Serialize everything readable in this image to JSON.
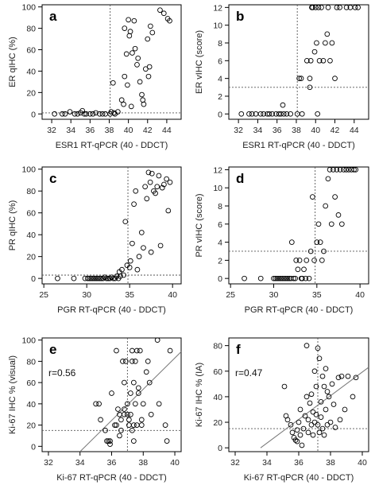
{
  "chart_data": [
    {
      "type": "scatter",
      "panel_label": "a",
      "xlabel": "ESR1 RT-qPCR (40 - DDCT)",
      "ylabel": "ER qIHC (%)",
      "xlim": [
        31,
        45.5
      ],
      "ylim": [
        -5,
        102
      ],
      "xticks": [
        32,
        34,
        36,
        38,
        40,
        42,
        44
      ],
      "yticks": [
        0,
        20,
        40,
        60,
        80,
        100
      ],
      "vline": 38.1,
      "hline": 1,
      "points": [
        [
          32.3,
          0
        ],
        [
          33.1,
          0
        ],
        [
          33.4,
          0
        ],
        [
          33.9,
          2
        ],
        [
          34.4,
          0
        ],
        [
          34.7,
          0
        ],
        [
          35.0,
          1
        ],
        [
          35.2,
          3
        ],
        [
          35.4,
          0
        ],
        [
          35.6,
          0
        ],
        [
          36.0,
          0
        ],
        [
          36.3,
          0
        ],
        [
          36.6,
          1
        ],
        [
          37.0,
          0
        ],
        [
          37.3,
          0
        ],
        [
          37.6,
          0
        ],
        [
          38.1,
          0
        ],
        [
          38.2,
          2
        ],
        [
          38.5,
          1
        ],
        [
          38.6,
          0
        ],
        [
          38.4,
          29
        ],
        [
          38.9,
          2
        ],
        [
          39.3,
          13
        ],
        [
          39.5,
          9
        ],
        [
          39.6,
          80
        ],
        [
          39.6,
          35
        ],
        [
          39.8,
          56
        ],
        [
          39.9,
          27
        ],
        [
          40.0,
          88
        ],
        [
          40.1,
          73
        ],
        [
          40.2,
          77
        ],
        [
          40.3,
          7
        ],
        [
          40.4,
          57
        ],
        [
          40.6,
          87
        ],
        [
          40.7,
          61
        ],
        [
          40.9,
          46
        ],
        [
          41.0,
          52
        ],
        [
          41.2,
          30
        ],
        [
          41.4,
          18
        ],
        [
          41.5,
          13
        ],
        [
          41.6,
          9
        ],
        [
          41.8,
          42
        ],
        [
          42.0,
          70
        ],
        [
          42.1,
          35
        ],
        [
          42.2,
          44
        ],
        [
          42.3,
          82
        ],
        [
          42.5,
          76
        ],
        [
          43.3,
          97
        ],
        [
          43.7,
          94
        ],
        [
          44.1,
          89
        ],
        [
          44.3,
          87
        ]
      ]
    },
    {
      "type": "scatter",
      "panel_label": "b",
      "xlabel": "ESR1 RT-qPCR (40 - DDCT)",
      "ylabel": "ER vIHC (score)",
      "xlim": [
        31,
        45.5
      ],
      "ylim": [
        -0.6,
        12.3
      ],
      "xticks": [
        32,
        34,
        36,
        38,
        40,
        42,
        44
      ],
      "yticks": [
        0,
        2,
        4,
        6,
        8,
        10,
        12
      ],
      "vline": 38.1,
      "hline": 3,
      "points": [
        [
          32.3,
          0
        ],
        [
          33.1,
          0
        ],
        [
          33.4,
          0
        ],
        [
          33.8,
          0
        ],
        [
          34.3,
          0
        ],
        [
          34.6,
          0
        ],
        [
          35.0,
          0
        ],
        [
          35.2,
          0
        ],
        [
          35.5,
          0
        ],
        [
          35.9,
          0
        ],
        [
          36.2,
          0
        ],
        [
          36.4,
          0
        ],
        [
          36.6,
          1
        ],
        [
          36.7,
          0
        ],
        [
          37.0,
          0
        ],
        [
          37.4,
          0
        ],
        [
          38.1,
          0
        ],
        [
          38.3,
          4
        ],
        [
          38.5,
          4
        ],
        [
          38.6,
          0
        ],
        [
          39.1,
          6
        ],
        [
          39.4,
          4
        ],
        [
          39.4,
          3
        ],
        [
          39.5,
          6
        ],
        [
          39.6,
          12
        ],
        [
          39.7,
          12
        ],
        [
          39.9,
          7
        ],
        [
          40.0,
          12
        ],
        [
          40.1,
          8
        ],
        [
          40.2,
          0
        ],
        [
          40.3,
          12
        ],
        [
          40.4,
          6
        ],
        [
          40.6,
          12
        ],
        [
          40.8,
          6
        ],
        [
          41.0,
          8
        ],
        [
          41.2,
          9
        ],
        [
          41.3,
          12
        ],
        [
          41.5,
          6
        ],
        [
          41.7,
          8
        ],
        [
          42.0,
          4
        ],
        [
          42.2,
          12
        ],
        [
          42.5,
          12
        ],
        [
          43.2,
          12
        ],
        [
          43.6,
          12
        ],
        [
          44.1,
          12
        ],
        [
          44.4,
          12
        ]
      ]
    },
    {
      "type": "scatter",
      "panel_label": "c",
      "xlabel": "PGR RT-qPCR (40 - DDCT)",
      "ylabel": "PR qIHC (%)",
      "xlim": [
        24.8,
        41
      ],
      "ylim": [
        -5,
        102
      ],
      "xticks": [
        25,
        30,
        35,
        40
      ],
      "yticks": [
        0,
        20,
        40,
        60,
        80,
        100
      ],
      "vline": 34.8,
      "hline": 3,
      "points": [
        [
          26.6,
          0
        ],
        [
          28.5,
          0
        ],
        [
          29.8,
          0
        ],
        [
          30.1,
          0
        ],
        [
          30.3,
          0
        ],
        [
          30.5,
          0
        ],
        [
          30.7,
          0
        ],
        [
          30.9,
          0
        ],
        [
          31.1,
          0
        ],
        [
          31.3,
          0
        ],
        [
          31.5,
          0
        ],
        [
          31.7,
          0
        ],
        [
          31.9,
          0
        ],
        [
          32.1,
          1
        ],
        [
          32.3,
          0
        ],
        [
          32.5,
          0
        ],
        [
          32.7,
          0
        ],
        [
          32.9,
          1
        ],
        [
          33.1,
          0
        ],
        [
          33.3,
          0
        ],
        [
          33.5,
          2
        ],
        [
          33.7,
          0
        ],
        [
          33.8,
          6
        ],
        [
          33.9,
          2
        ],
        [
          34.1,
          8
        ],
        [
          34.3,
          3
        ],
        [
          34.5,
          52
        ],
        [
          34.7,
          12
        ],
        [
          35.0,
          10
        ],
        [
          35.1,
          16
        ],
        [
          35.3,
          32
        ],
        [
          35.5,
          68
        ],
        [
          35.7,
          80
        ],
        [
          35.9,
          8
        ],
        [
          36.1,
          20
        ],
        [
          36.4,
          42
        ],
        [
          36.6,
          28
        ],
        [
          36.8,
          84
        ],
        [
          37.0,
          73
        ],
        [
          37.2,
          97
        ],
        [
          37.4,
          88
        ],
        [
          37.5,
          24
        ],
        [
          37.6,
          96
        ],
        [
          37.8,
          80
        ],
        [
          38.0,
          78
        ],
        [
          38.2,
          84
        ],
        [
          38.4,
          94
        ],
        [
          38.6,
          30
        ],
        [
          38.8,
          83
        ],
        [
          39.0,
          86
        ],
        [
          39.3,
          91
        ],
        [
          39.5,
          62
        ],
        [
          39.7,
          88
        ]
      ]
    },
    {
      "type": "scatter",
      "panel_label": "d",
      "xlabel": "PGR RT-qPCR (40 - DDCT)",
      "ylabel": "PR vIHC (score)",
      "xlim": [
        24.8,
        41
      ],
      "ylim": [
        -0.6,
        12.3
      ],
      "xticks": [
        25,
        30,
        35,
        40
      ],
      "yticks": [
        0,
        2,
        4,
        6,
        8,
        10,
        12
      ],
      "vline": 34.8,
      "hline": 3,
      "points": [
        [
          26.6,
          0
        ],
        [
          28.5,
          0
        ],
        [
          30.0,
          0
        ],
        [
          30.2,
          0
        ],
        [
          30.4,
          0
        ],
        [
          30.6,
          0
        ],
        [
          30.8,
          0
        ],
        [
          31.0,
          0
        ],
        [
          31.2,
          0
        ],
        [
          31.4,
          0
        ],
        [
          31.6,
          0
        ],
        [
          31.8,
          0
        ],
        [
          32.0,
          0
        ],
        [
          32.1,
          4
        ],
        [
          32.3,
          0
        ],
        [
          32.5,
          0
        ],
        [
          32.6,
          2
        ],
        [
          32.8,
          1
        ],
        [
          33.0,
          2
        ],
        [
          33.2,
          0
        ],
        [
          33.3,
          0
        ],
        [
          33.5,
          1
        ],
        [
          33.7,
          0
        ],
        [
          33.8,
          2
        ],
        [
          34.1,
          0
        ],
        [
          34.3,
          3
        ],
        [
          34.5,
          9
        ],
        [
          34.7,
          2
        ],
        [
          35.0,
          4
        ],
        [
          35.2,
          6
        ],
        [
          35.4,
          4
        ],
        [
          35.6,
          2
        ],
        [
          35.8,
          3
        ],
        [
          36.0,
          8
        ],
        [
          36.3,
          11
        ],
        [
          36.5,
          12
        ],
        [
          36.7,
          6
        ],
        [
          36.9,
          12
        ],
        [
          37.1,
          9
        ],
        [
          37.3,
          12
        ],
        [
          37.5,
          7
        ],
        [
          37.7,
          12
        ],
        [
          37.9,
          6
        ],
        [
          38.1,
          12
        ],
        [
          38.4,
          12
        ],
        [
          38.7,
          12
        ],
        [
          39.0,
          12
        ],
        [
          39.3,
          12
        ],
        [
          39.5,
          12
        ]
      ]
    },
    {
      "type": "scatter",
      "panel_label": "e",
      "xlabel": "Ki-67 RT-qPCR (40 - DDCT)",
      "ylabel": "Ki-67 IHC % (visual)",
      "annotation": "r=0.56",
      "xlim": [
        31.6,
        40.4
      ],
      "ylim": [
        -5,
        102
      ],
      "xticks": [
        32,
        34,
        36,
        38,
        40
      ],
      "yticks": [
        0,
        20,
        40,
        60,
        80,
        100
      ],
      "vline": 37.0,
      "hline": 15,
      "fit_line": [
        [
          34.0,
          -5
        ],
        [
          40.4,
          89
        ]
      ],
      "points": [
        [
          35.0,
          40
        ],
        [
          35.2,
          40
        ],
        [
          35.3,
          25
        ],
        [
          35.6,
          15
        ],
        [
          35.7,
          5
        ],
        [
          35.8,
          5
        ],
        [
          35.9,
          2
        ],
        [
          35.9,
          5
        ],
        [
          36.0,
          50
        ],
        [
          36.2,
          20
        ],
        [
          36.3,
          20
        ],
        [
          36.3,
          90
        ],
        [
          36.4,
          35
        ],
        [
          36.5,
          10
        ],
        [
          36.5,
          30
        ],
        [
          36.6,
          25
        ],
        [
          36.6,
          15
        ],
        [
          36.7,
          80
        ],
        [
          36.8,
          30
        ],
        [
          36.8,
          35
        ],
        [
          36.8,
          60
        ],
        [
          36.9,
          80
        ],
        [
          37.0,
          30
        ],
        [
          37.0,
          40
        ],
        [
          37.1,
          20
        ],
        [
          37.1,
          25
        ],
        [
          37.2,
          30
        ],
        [
          37.2,
          50
        ],
        [
          37.3,
          80
        ],
        [
          37.3,
          90
        ],
        [
          37.3,
          15
        ],
        [
          37.4,
          20
        ],
        [
          37.4,
          60
        ],
        [
          37.4,
          5
        ],
        [
          37.5,
          40
        ],
        [
          37.5,
          80
        ],
        [
          37.6,
          20
        ],
        [
          37.6,
          90
        ],
        [
          37.7,
          50
        ],
        [
          37.7,
          55
        ],
        [
          37.8,
          90
        ],
        [
          37.9,
          20
        ],
        [
          37.9,
          25
        ],
        [
          38.0,
          40
        ],
        [
          38.2,
          70
        ],
        [
          38.4,
          60
        ],
        [
          38.5,
          30
        ],
        [
          38.9,
          100
        ],
        [
          39.0,
          40
        ],
        [
          39.4,
          20
        ],
        [
          39.7,
          90
        ],
        [
          39.5,
          5
        ],
        [
          38.3,
          80
        ]
      ]
    },
    {
      "type": "scatter",
      "panel_label": "f",
      "xlabel": "Ki-67 RT-qPCR (40 - DDCT)",
      "ylabel": "Ki-67 IHC % (IA)",
      "annotation": "r=0.47",
      "xlim": [
        31.6,
        40.4
      ],
      "ylim": [
        -3,
        86
      ],
      "xticks": [
        32,
        34,
        36,
        38,
        40
      ],
      "yticks": [
        0,
        20,
        40,
        60,
        80
      ],
      "vline": 37.2,
      "hline": 15,
      "fit_line": [
        [
          33.6,
          0
        ],
        [
          40.4,
          63
        ]
      ],
      "points": [
        [
          35.1,
          48
        ],
        [
          35.2,
          25
        ],
        [
          35.3,
          22
        ],
        [
          35.5,
          18
        ],
        [
          35.6,
          12
        ],
        [
          35.7,
          8
        ],
        [
          35.8,
          6
        ],
        [
          35.9,
          5
        ],
        [
          35.9,
          14
        ],
        [
          36.0,
          20
        ],
        [
          36.1,
          30
        ],
        [
          36.1,
          10
        ],
        [
          36.2,
          2
        ],
        [
          36.3,
          15
        ],
        [
          36.4,
          25
        ],
        [
          36.5,
          80
        ],
        [
          36.5,
          40
        ],
        [
          36.6,
          12
        ],
        [
          36.6,
          22
        ],
        [
          36.7,
          35
        ],
        [
          36.8,
          18
        ],
        [
          36.8,
          42
        ],
        [
          36.9,
          28
        ],
        [
          36.9,
          10
        ],
        [
          37.0,
          20
        ],
        [
          37.0,
          60
        ],
        [
          37.1,
          26
        ],
        [
          37.1,
          48
        ],
        [
          37.2,
          18
        ],
        [
          37.2,
          78
        ],
        [
          37.3,
          12
        ],
        [
          37.3,
          70
        ],
        [
          37.4,
          36
        ],
        [
          37.4,
          24
        ],
        [
          37.5,
          15
        ],
        [
          37.5,
          56
        ],
        [
          37.6,
          48
        ],
        [
          37.6,
          10
        ],
        [
          37.7,
          30
        ],
        [
          37.7,
          62
        ],
        [
          37.8,
          44
        ],
        [
          37.8,
          18
        ],
        [
          37.9,
          40
        ],
        [
          38.0,
          20
        ],
        [
          38.1,
          50
        ],
        [
          38.2,
          34
        ],
        [
          38.3,
          16
        ],
        [
          38.5,
          55
        ],
        [
          38.6,
          22
        ],
        [
          38.7,
          56
        ],
        [
          38.9,
          30
        ],
        [
          39.1,
          56
        ],
        [
          39.4,
          40
        ],
        [
          39.6,
          55
        ]
      ]
    }
  ]
}
